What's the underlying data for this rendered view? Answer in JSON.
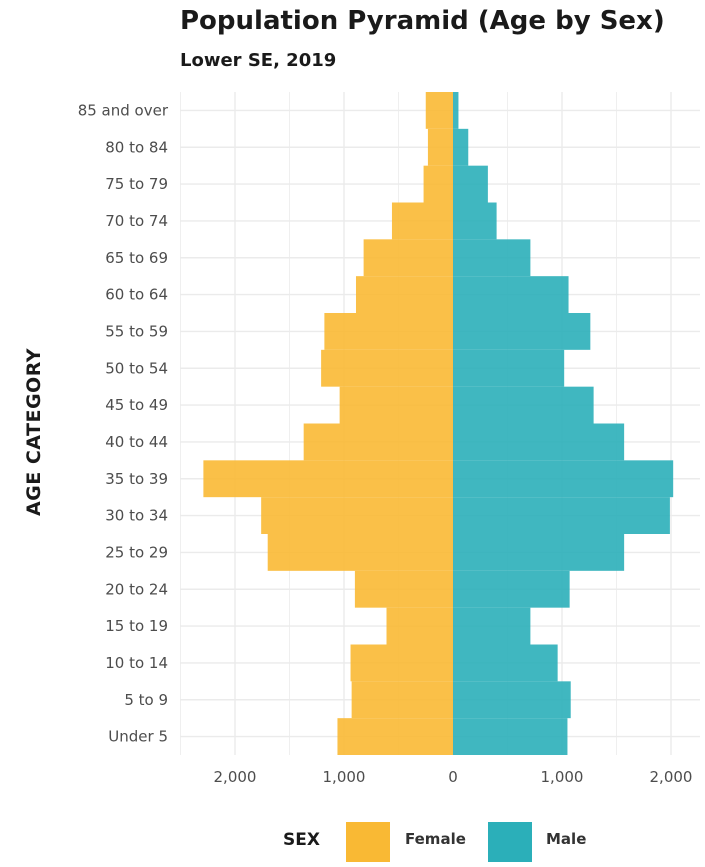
{
  "chart_data": {
    "type": "bar",
    "orientation": "horizontal-diverging",
    "title": "Population Pyramid (Age by Sex)",
    "subtitle": "Lower SE, 2019",
    "ylabel": "AGE CATEGORY",
    "xlabel": "",
    "xlim": [
      -2500,
      2500
    ],
    "x_ticks": [
      -2000,
      -1000,
      0,
      1000,
      2000
    ],
    "x_tick_labels": [
      "2,000",
      "1,000",
      "0",
      "1,000",
      "2,000"
    ],
    "categories": [
      "Under 5",
      "5 to 9",
      "10 to 14",
      "15 to 19",
      "20 to 24",
      "25 to 29",
      "30 to 34",
      "35 to 39",
      "40 to 44",
      "45 to 49",
      "50 to 54",
      "55 to 59",
      "60 to 64",
      "65 to 69",
      "70 to 74",
      "75 to 79",
      "80 to 84",
      "85 and over"
    ],
    "series": [
      {
        "name": "Female",
        "color": "#F9B934",
        "values": [
          1060,
          930,
          940,
          610,
          900,
          1700,
          1760,
          2290,
          1370,
          1040,
          1210,
          1180,
          890,
          820,
          560,
          270,
          230,
          250
        ]
      },
      {
        "name": "Male",
        "color": "#2BAFB9",
        "values": [
          1050,
          1080,
          960,
          710,
          1070,
          1570,
          1990,
          2020,
          1570,
          1290,
          1020,
          1260,
          1060,
          710,
          400,
          320,
          140,
          50
        ]
      }
    ],
    "grid": true,
    "legend": {
      "title": "SEX",
      "position": "bottom"
    }
  }
}
